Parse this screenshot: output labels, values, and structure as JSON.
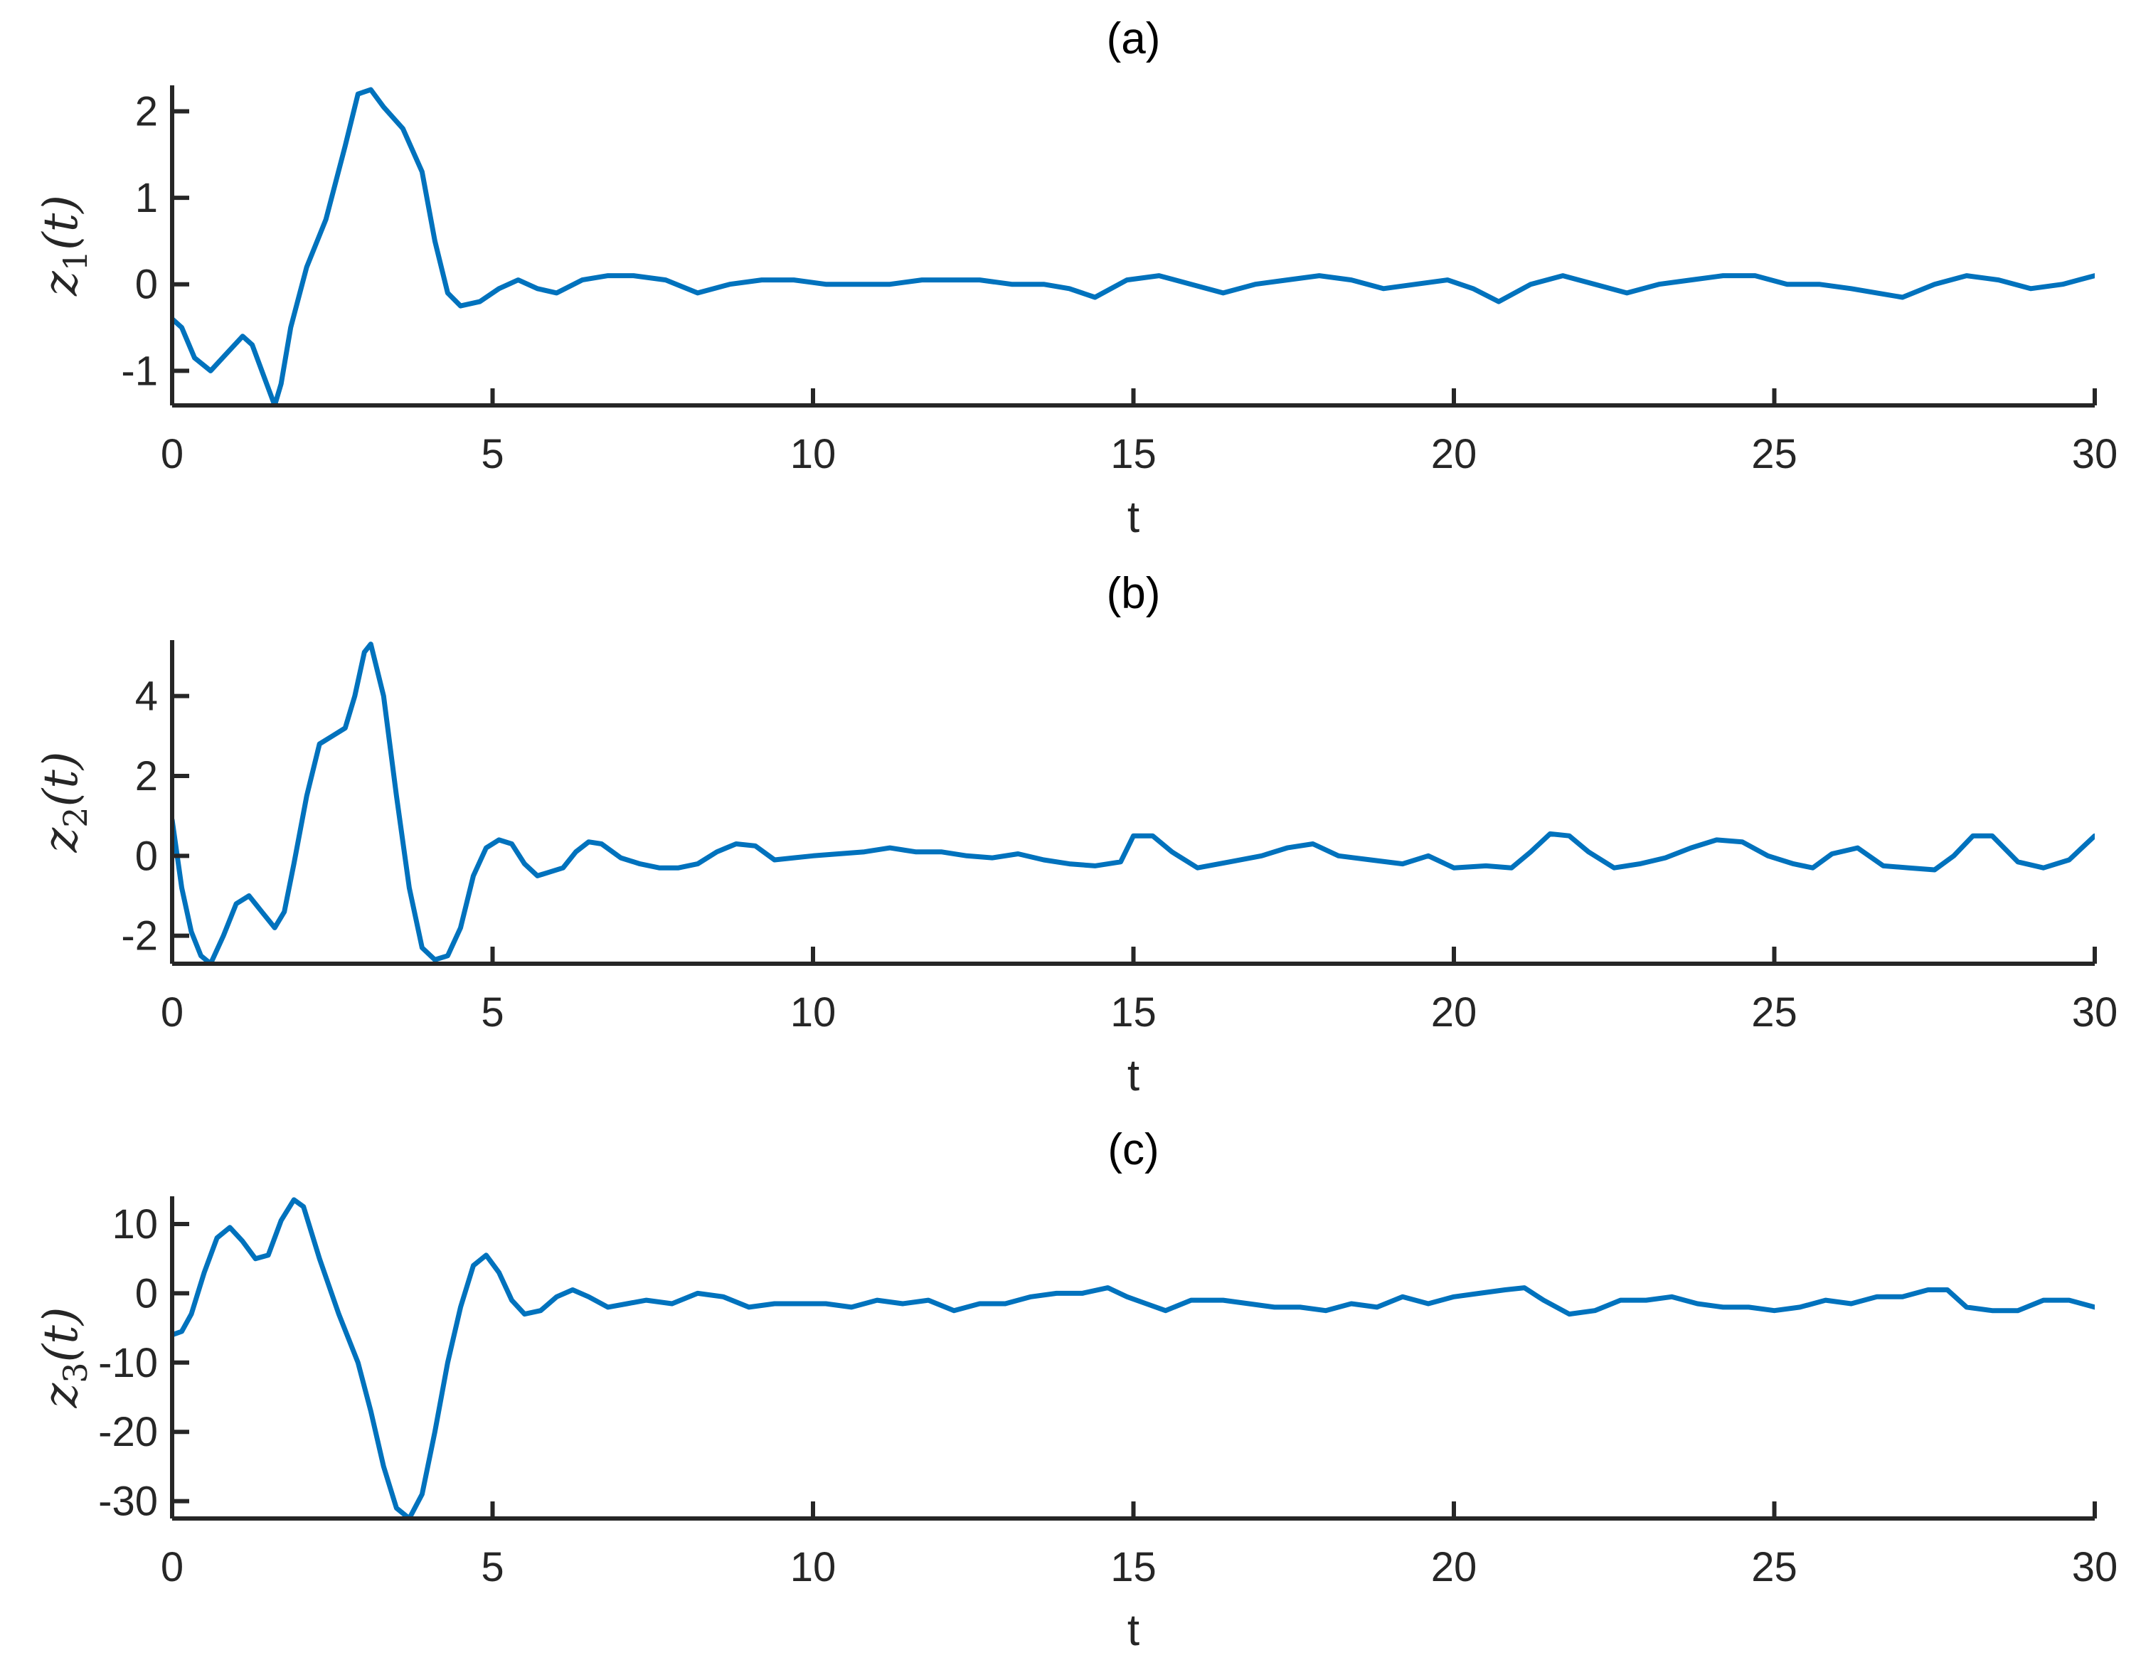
{
  "colors": {
    "series": "#0072BD",
    "axis": "#262626"
  },
  "chart_data": [
    {
      "type": "line",
      "title": "(a)",
      "xlabel": "t",
      "ylabel": {
        "var": "z",
        "sub": "1",
        "arg": "(t)"
      },
      "xlim": [
        0,
        30
      ],
      "ylim": [
        -1.4,
        2.3
      ],
      "xticks": [
        0,
        5,
        10,
        15,
        20,
        25,
        30
      ],
      "xtick_labels": [
        "0",
        "5",
        "10",
        "15",
        "20",
        "25",
        "30"
      ],
      "yticks": [
        -1,
        0,
        1,
        2
      ],
      "ytick_labels": [
        "-1",
        "0",
        "1",
        "2"
      ],
      "grid": false,
      "series": [
        {
          "x": [
            0,
            0.15,
            0.35,
            0.6,
            0.85,
            1.1,
            1.25,
            1.45,
            1.6,
            1.7,
            1.85,
            2.1,
            2.4,
            2.7,
            2.9,
            3.1,
            3.3,
            3.6,
            3.9,
            4.1,
            4.3,
            4.5,
            4.8,
            5.1,
            5.4,
            5.7,
            6.0,
            6.4,
            6.8,
            7.2,
            7.7,
            8.2,
            8.7,
            9.2,
            9.7,
            10.2,
            10.7,
            11.2,
            11.7,
            12.1,
            12.6,
            13.1,
            13.6,
            14.0,
            14.4,
            14.9,
            15.4,
            15.9,
            16.4,
            16.9,
            17.4,
            17.9,
            18.4,
            18.9,
            19.4,
            19.9,
            20.3,
            20.7,
            21.2,
            21.7,
            22.2,
            22.7,
            23.2,
            23.7,
            24.2,
            24.7,
            25.2,
            25.7,
            26.2,
            26.6,
            27.0,
            27.5,
            28.0,
            28.5,
            29.0,
            29.5,
            30.0
          ],
          "y": [
            -0.4,
            -0.5,
            -0.85,
            -1.0,
            -0.8,
            -0.6,
            -0.7,
            -1.1,
            -1.4,
            -1.15,
            -0.5,
            0.2,
            0.75,
            1.6,
            2.2,
            2.25,
            2.05,
            1.8,
            1.3,
            0.5,
            -0.1,
            -0.25,
            -0.2,
            -0.05,
            0.05,
            -0.05,
            -0.1,
            0.05,
            0.1,
            0.1,
            0.05,
            -0.1,
            0.0,
            0.05,
            0.05,
            0.0,
            0.0,
            0.0,
            0.05,
            0.05,
            0.05,
            0.0,
            0.0,
            -0.05,
            -0.15,
            0.05,
            0.1,
            0.0,
            -0.1,
            0.0,
            0.05,
            0.1,
            0.05,
            -0.05,
            0.0,
            0.05,
            -0.05,
            -0.2,
            0.0,
            0.1,
            0.0,
            -0.1,
            0.0,
            0.05,
            0.1,
            0.1,
            0.0,
            0.0,
            -0.05,
            -0.1,
            -0.15,
            0.0,
            0.1,
            0.05,
            -0.05,
            0.0,
            0.1
          ]
        }
      ]
    },
    {
      "type": "line",
      "title": "(b)",
      "xlabel": "t",
      "ylabel": {
        "var": "z",
        "sub": "2",
        "arg": "(t)"
      },
      "xlim": [
        0,
        30
      ],
      "ylim": [
        -2.7,
        5.4
      ],
      "xticks": [
        0,
        5,
        10,
        15,
        20,
        25,
        30
      ],
      "xtick_labels": [
        "0",
        "5",
        "10",
        "15",
        "20",
        "25",
        "30"
      ],
      "yticks": [
        -2,
        0,
        2,
        4
      ],
      "ytick_labels": [
        "-2",
        "0",
        "2",
        "4"
      ],
      "grid": false,
      "series": [
        {
          "x": [
            0,
            0.15,
            0.3,
            0.45,
            0.6,
            0.8,
            1.0,
            1.2,
            1.4,
            1.6,
            1.75,
            1.9,
            2.1,
            2.3,
            2.5,
            2.7,
            2.85,
            3.0,
            3.1,
            3.3,
            3.5,
            3.7,
            3.9,
            4.1,
            4.3,
            4.5,
            4.7,
            4.9,
            5.1,
            5.3,
            5.5,
            5.7,
            5.9,
            6.1,
            6.3,
            6.5,
            6.7,
            7.0,
            7.3,
            7.6,
            7.9,
            8.2,
            8.5,
            8.8,
            9.1,
            9.4,
            9.7,
            10.0,
            10.4,
            10.8,
            11.2,
            11.6,
            12.0,
            12.4,
            12.8,
            13.2,
            13.6,
            14.0,
            14.4,
            14.8,
            15.0,
            15.3,
            15.6,
            16.0,
            16.5,
            17.0,
            17.4,
            17.8,
            18.2,
            18.7,
            19.2,
            19.6,
            20.0,
            20.5,
            20.9,
            21.2,
            21.5,
            21.8,
            22.1,
            22.5,
            22.9,
            23.3,
            23.7,
            24.1,
            24.5,
            24.9,
            25.3,
            25.6,
            25.9,
            26.3,
            26.7,
            27.1,
            27.5,
            27.8,
            28.1,
            28.4,
            28.8,
            29.2,
            29.6,
            30.0
          ],
          "y": [
            0.9,
            -0.8,
            -1.9,
            -2.5,
            -2.7,
            -2.0,
            -1.2,
            -1.0,
            -1.4,
            -1.8,
            -1.4,
            -0.2,
            1.5,
            2.8,
            3.0,
            3.2,
            4.0,
            5.1,
            5.3,
            4.0,
            1.5,
            -0.8,
            -2.3,
            -2.6,
            -2.5,
            -1.8,
            -0.5,
            0.2,
            0.4,
            0.3,
            -0.2,
            -0.5,
            -0.4,
            -0.3,
            0.1,
            0.35,
            0.3,
            -0.05,
            -0.2,
            -0.3,
            -0.3,
            -0.2,
            0.1,
            0.3,
            0.25,
            -0.1,
            -0.05,
            0.0,
            0.05,
            0.1,
            0.2,
            0.1,
            0.1,
            0.0,
            -0.05,
            0.05,
            -0.1,
            -0.2,
            -0.25,
            -0.15,
            0.5,
            0.5,
            0.1,
            -0.3,
            -0.15,
            0.0,
            0.2,
            0.3,
            0.0,
            -0.1,
            -0.2,
            0.0,
            -0.3,
            -0.25,
            -0.3,
            0.1,
            0.55,
            0.5,
            0.1,
            -0.3,
            -0.2,
            -0.05,
            0.2,
            0.4,
            0.35,
            0.0,
            -0.2,
            -0.3,
            0.05,
            0.2,
            -0.25,
            -0.3,
            -0.35,
            0.0,
            0.5,
            0.5,
            -0.15,
            -0.3,
            -0.1,
            0.5
          ]
        }
      ]
    },
    {
      "type": "line",
      "title": "(c)",
      "xlabel": "t",
      "ylabel": {
        "var": "z",
        "sub": "3",
        "arg": "(t)"
      },
      "xlim": [
        0,
        30
      ],
      "ylim": [
        -32.5,
        14
      ],
      "xticks": [
        0,
        5,
        10,
        15,
        20,
        25,
        30
      ],
      "xtick_labels": [
        "0",
        "5",
        "10",
        "15",
        "20",
        "25",
        "30"
      ],
      "yticks": [
        -30,
        -20,
        -10,
        0,
        10
      ],
      "ytick_labels": [
        "-30",
        "-20",
        "-10",
        "0",
        "10"
      ],
      "grid": false,
      "series": [
        {
          "x": [
            0,
            0.15,
            0.3,
            0.5,
            0.7,
            0.9,
            1.1,
            1.3,
            1.5,
            1.7,
            1.9,
            2.05,
            2.3,
            2.6,
            2.9,
            3.1,
            3.3,
            3.5,
            3.7,
            3.9,
            4.1,
            4.3,
            4.5,
            4.7,
            4.9,
            5.1,
            5.3,
            5.5,
            5.75,
            6.0,
            6.25,
            6.5,
            6.8,
            7.1,
            7.4,
            7.8,
            8.2,
            8.6,
            9.0,
            9.4,
            9.8,
            10.2,
            10.6,
            11.0,
            11.4,
            11.8,
            12.2,
            12.6,
            13.0,
            13.4,
            13.8,
            14.2,
            14.6,
            14.9,
            15.2,
            15.5,
            15.9,
            16.4,
            16.8,
            17.2,
            17.6,
            18.0,
            18.4,
            18.8,
            19.2,
            19.6,
            20.0,
            20.4,
            20.8,
            21.1,
            21.4,
            21.8,
            22.2,
            22.6,
            23.0,
            23.4,
            23.8,
            24.2,
            24.6,
            25.0,
            25.4,
            25.8,
            26.2,
            26.6,
            27.0,
            27.4,
            27.7,
            28.0,
            28.4,
            28.8,
            29.2,
            29.6,
            30.0
          ],
          "y": [
            -6,
            -5.5,
            -3,
            3,
            8,
            9.5,
            7.5,
            5,
            5.5,
            10.5,
            13.5,
            12.5,
            5,
            -3,
            -10,
            -17,
            -25,
            -31,
            -32.5,
            -29,
            -20,
            -10,
            -2,
            4,
            5.5,
            3,
            -1,
            -3,
            -2.5,
            -0.5,
            0.5,
            -0.5,
            -2,
            -1.5,
            -1,
            -1.5,
            0,
            -0.5,
            -2,
            -1.5,
            -1.5,
            -1.5,
            -2,
            -1,
            -1.5,
            -1,
            -2.5,
            -1.5,
            -1.5,
            -0.5,
            0,
            0,
            0.8,
            -0.5,
            -1.5,
            -2.5,
            -1,
            -1,
            -1.5,
            -2,
            -2,
            -2.5,
            -1.5,
            -2,
            -0.5,
            -1.5,
            -0.5,
            0,
            0.5,
            0.8,
            -1,
            -3,
            -2.5,
            -1,
            -1,
            -0.5,
            -1.5,
            -2,
            -2,
            -2.5,
            -2,
            -1,
            -1.5,
            -0.5,
            -0.5,
            0.5,
            0.5,
            -2,
            -2.5,
            -2.5,
            -1,
            -1,
            -2
          ]
        }
      ]
    }
  ]
}
